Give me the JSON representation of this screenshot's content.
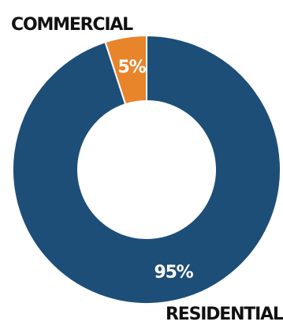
{
  "chart_data": {
    "type": "pie",
    "categories": [
      "COMMERCIAL",
      "RESIDENTIAL"
    ],
    "values": [
      5,
      95
    ],
    "value_labels": [
      "5%",
      "95%"
    ],
    "colors": [
      "#e8842a",
      "#1d4e78"
    ],
    "donut": true,
    "start": "top",
    "direction": "counter-clockwise"
  }
}
